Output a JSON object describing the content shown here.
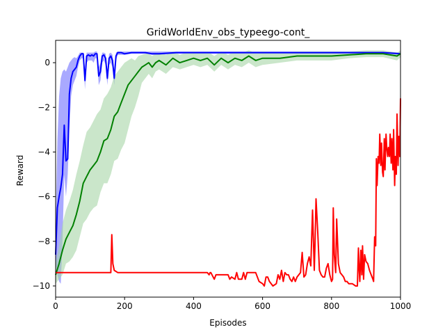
{
  "chart_data": {
    "type": "line",
    "title": "GridWorldEnv_obs_typeego-cont_",
    "xlabel": "Episodes",
    "ylabel": "Reward",
    "xlim": [
      0,
      1000
    ],
    "ylim": [
      -10.5,
      1.0
    ],
    "xticks": [
      0,
      200,
      400,
      600,
      800,
      1000
    ],
    "yticks": [
      0,
      -2,
      -4,
      -6,
      -8,
      -10
    ],
    "ytick_labels": [
      "0",
      "−2",
      "−4",
      "−6",
      "−8",
      "−10"
    ],
    "grid": false,
    "legend": "none",
    "series": [
      {
        "color": "#0000ff",
        "band_color": "#8c8cff",
        "x": [
          0,
          5,
          10,
          15,
          20,
          25,
          30,
          35,
          40,
          45,
          50,
          55,
          60,
          65,
          70,
          75,
          80,
          85,
          90,
          95,
          100,
          105,
          110,
          115,
          120,
          125,
          130,
          135,
          140,
          145,
          150,
          155,
          160,
          165,
          170,
          175,
          180,
          185,
          190,
          200,
          220,
          240,
          260,
          280,
          300,
          350,
          400,
          450,
          500,
          550,
          600,
          650,
          700,
          750,
          800,
          850,
          900,
          950,
          1000
        ],
        "y": [
          -8.6,
          -6.5,
          -6.0,
          -5.6,
          -5.0,
          -2.8,
          -4.4,
          -4.3,
          -1.4,
          -0.7,
          -0.4,
          -0.3,
          -0.2,
          0.1,
          0.3,
          0.4,
          0.4,
          -0.8,
          0.3,
          0.35,
          0.3,
          0.35,
          0.3,
          0.4,
          0.4,
          -0.6,
          -0.4,
          0.3,
          0.35,
          0.2,
          -0.7,
          0.2,
          0.3,
          0.1,
          -0.7,
          0.3,
          0.45,
          0.45,
          0.45,
          0.4,
          0.45,
          0.45,
          0.45,
          0.4,
          0.4,
          0.45,
          0.45,
          0.45,
          0.45,
          0.45,
          0.45,
          0.45,
          0.45,
          0.45,
          0.45,
          0.45,
          0.45,
          0.45,
          0.4
        ],
        "lower": [
          -9.0,
          -9.5,
          -9.8,
          -9.9,
          -8.0,
          -5.0,
          -6.0,
          -5.0,
          -3.0,
          -1.5,
          -1.0,
          -0.8,
          -0.6,
          -0.2,
          0.1,
          0.2,
          0.2,
          -1.2,
          0.0,
          0.1,
          0.1,
          0.1,
          0.0,
          0.2,
          0.2,
          -1.0,
          -0.8,
          0.0,
          0.1,
          -0.1,
          -1.0,
          -0.1,
          0.0,
          -0.2,
          -1.0,
          0.1,
          0.35,
          0.35,
          0.35,
          0.35,
          0.4,
          0.4,
          0.4,
          0.35,
          0.35,
          0.4,
          0.4,
          0.4,
          0.4,
          0.4,
          0.4,
          0.4,
          0.4,
          0.4,
          0.4,
          0.4,
          0.4,
          0.4,
          0.35
        ],
        "upper": [
          -7.5,
          -3.5,
          -1.5,
          -0.7,
          -0.4,
          -0.3,
          -0.4,
          -0.2,
          0.0,
          0.1,
          0.2,
          0.25,
          0.2,
          0.3,
          0.45,
          0.45,
          0.45,
          -0.4,
          0.45,
          0.45,
          0.45,
          0.45,
          0.45,
          0.5,
          0.5,
          -0.2,
          0.0,
          0.45,
          0.45,
          0.4,
          -0.4,
          0.4,
          0.45,
          0.35,
          -0.4,
          0.45,
          0.5,
          0.5,
          0.5,
          0.5,
          0.5,
          0.5,
          0.5,
          0.5,
          0.5,
          0.5,
          0.5,
          0.5,
          0.5,
          0.5,
          0.5,
          0.5,
          0.5,
          0.5,
          0.5,
          0.5,
          0.5,
          0.5,
          0.45
        ]
      },
      {
        "color": "#008000",
        "band_color": "#a6d6a6",
        "x": [
          0,
          10,
          20,
          30,
          40,
          50,
          60,
          70,
          80,
          90,
          100,
          110,
          120,
          130,
          140,
          150,
          160,
          170,
          180,
          190,
          200,
          210,
          220,
          230,
          240,
          250,
          260,
          270,
          280,
          290,
          300,
          320,
          340,
          360,
          380,
          400,
          420,
          440,
          460,
          480,
          500,
          520,
          540,
          560,
          580,
          600,
          650,
          700,
          750,
          800,
          850,
          900,
          950,
          990,
          1000
        ],
        "y": [
          -9.5,
          -9.0,
          -8.4,
          -7.9,
          -7.6,
          -7.3,
          -6.8,
          -6.2,
          -5.4,
          -5.1,
          -4.8,
          -4.6,
          -4.4,
          -4.0,
          -3.5,
          -3.4,
          -3.0,
          -2.4,
          -2.2,
          -1.8,
          -1.4,
          -1.0,
          -0.8,
          -0.6,
          -0.4,
          -0.2,
          -0.1,
          0.0,
          -0.2,
          0.0,
          0.1,
          -0.1,
          0.2,
          0.0,
          0.1,
          0.2,
          0.1,
          0.2,
          -0.1,
          0.2,
          0.0,
          0.2,
          0.1,
          0.3,
          0.1,
          0.2,
          0.2,
          0.3,
          0.3,
          0.3,
          0.35,
          0.4,
          0.4,
          0.3,
          0.4
        ],
        "lower": [
          -9.9,
          -9.7,
          -9.5,
          -9.0,
          -8.9,
          -8.7,
          -8.4,
          -7.8,
          -7.2,
          -7.0,
          -6.7,
          -6.5,
          -6.4,
          -5.8,
          -5.4,
          -5.4,
          -5.0,
          -4.4,
          -4.3,
          -3.9,
          -3.6,
          -3.0,
          -2.4,
          -2.0,
          -1.5,
          -0.9,
          -0.7,
          -0.5,
          -0.7,
          -0.4,
          -0.3,
          -0.5,
          -0.2,
          -0.3,
          -0.2,
          -0.1,
          -0.2,
          -0.1,
          -0.4,
          -0.1,
          -0.3,
          -0.1,
          -0.2,
          0.0,
          -0.2,
          -0.1,
          0.0,
          0.1,
          0.1,
          0.1,
          0.2,
          0.25,
          0.25,
          0.1,
          0.25
        ],
        "upper": [
          -9.0,
          -8.2,
          -7.2,
          -6.6,
          -6.2,
          -5.7,
          -5.0,
          -4.4,
          -3.7,
          -3.1,
          -2.9,
          -2.6,
          -2.3,
          -2.1,
          -1.6,
          -1.4,
          -1.1,
          -0.6,
          -0.4,
          -0.2,
          0.0,
          0.1,
          0.2,
          0.1,
          0.3,
          0.35,
          0.4,
          0.4,
          0.3,
          0.4,
          0.45,
          0.35,
          0.5,
          0.35,
          0.45,
          0.5,
          0.45,
          0.5,
          0.3,
          0.5,
          0.35,
          0.5,
          0.45,
          0.55,
          0.45,
          0.5,
          0.45,
          0.5,
          0.5,
          0.5,
          0.5,
          0.55,
          0.55,
          0.45,
          0.55
        ]
      },
      {
        "color": "#ff0000",
        "x": [
          0,
          160,
          163,
          166,
          170,
          180,
          200,
          300,
          440,
          445,
          448,
          450,
          460,
          465,
          500,
          505,
          510,
          520,
          525,
          530,
          535,
          540,
          545,
          550,
          555,
          560,
          580,
          590,
          600,
          605,
          610,
          615,
          620,
          625,
          630,
          640,
          645,
          650,
          655,
          660,
          665,
          670,
          675,
          680,
          685,
          690,
          695,
          700,
          710,
          715,
          720,
          725,
          730,
          735,
          740,
          745,
          750,
          752,
          755,
          760,
          765,
          770,
          775,
          780,
          785,
          790,
          795,
          800,
          803,
          805,
          808,
          812,
          815,
          820,
          825,
          830,
          835,
          840,
          845,
          850,
          860,
          870,
          875,
          878,
          880,
          882,
          885,
          888,
          890,
          893,
          896,
          900,
          905,
          910,
          915,
          920,
          922,
          925,
          928,
          930,
          932,
          935,
          938,
          940,
          943,
          945,
          948,
          950,
          953,
          955,
          958,
          960,
          963,
          965,
          968,
          970,
          973,
          975,
          978,
          980,
          983,
          985,
          988,
          990,
          993,
          995,
          998,
          1000
        ],
        "y": [
          -9.4,
          -9.4,
          -7.7,
          -9.0,
          -9.3,
          -9.4,
          -9.4,
          -9.4,
          -9.4,
          -9.5,
          -9.4,
          -9.4,
          -9.7,
          -9.5,
          -9.5,
          -9.7,
          -9.6,
          -9.7,
          -9.4,
          -9.7,
          -9.7,
          -9.7,
          -9.4,
          -9.7,
          -9.4,
          -9.4,
          -9.4,
          -9.8,
          -9.9,
          -10.0,
          -9.6,
          -9.6,
          -9.8,
          -9.9,
          -10.0,
          -9.9,
          -9.5,
          -9.7,
          -9.3,
          -9.8,
          -9.4,
          -9.5,
          -9.5,
          -9.7,
          -9.8,
          -9.6,
          -9.8,
          -9.6,
          -9.4,
          -8.5,
          -9.6,
          -9.5,
          -9.0,
          -8.7,
          -9.1,
          -6.6,
          -9.3,
          -8.2,
          -6.1,
          -7.6,
          -9.3,
          -9.5,
          -9.6,
          -9.6,
          -9.2,
          -9.0,
          -9.5,
          -9.8,
          -9.7,
          -6.5,
          -8.6,
          -9.4,
          -7.0,
          -9.0,
          -9.4,
          -9.5,
          -9.6,
          -9.8,
          -9.8,
          -9.9,
          -9.9,
          -10.0,
          -10.0,
          -8.3,
          -9.2,
          -9.8,
          -8.4,
          -9.5,
          -8.2,
          -9.7,
          -8.6,
          -8.9,
          -9.0,
          -9.3,
          -9.5,
          -9.7,
          -9.8,
          -7.8,
          -8.2,
          -4.3,
          -5.5,
          -4.2,
          -4.5,
          -3.2,
          -4.6,
          -3.6,
          -4.9,
          -5.1,
          -3.4,
          -4.8,
          -3.2,
          -3.8,
          -4.2,
          -3.8,
          -4.2,
          -3.2,
          -4.5,
          -3.4,
          -4.8,
          -3.0,
          -5.5,
          -4.2,
          -5.0,
          -2.3,
          -4.6,
          -3.3,
          -4.2,
          -1.6
        ]
      }
    ]
  }
}
